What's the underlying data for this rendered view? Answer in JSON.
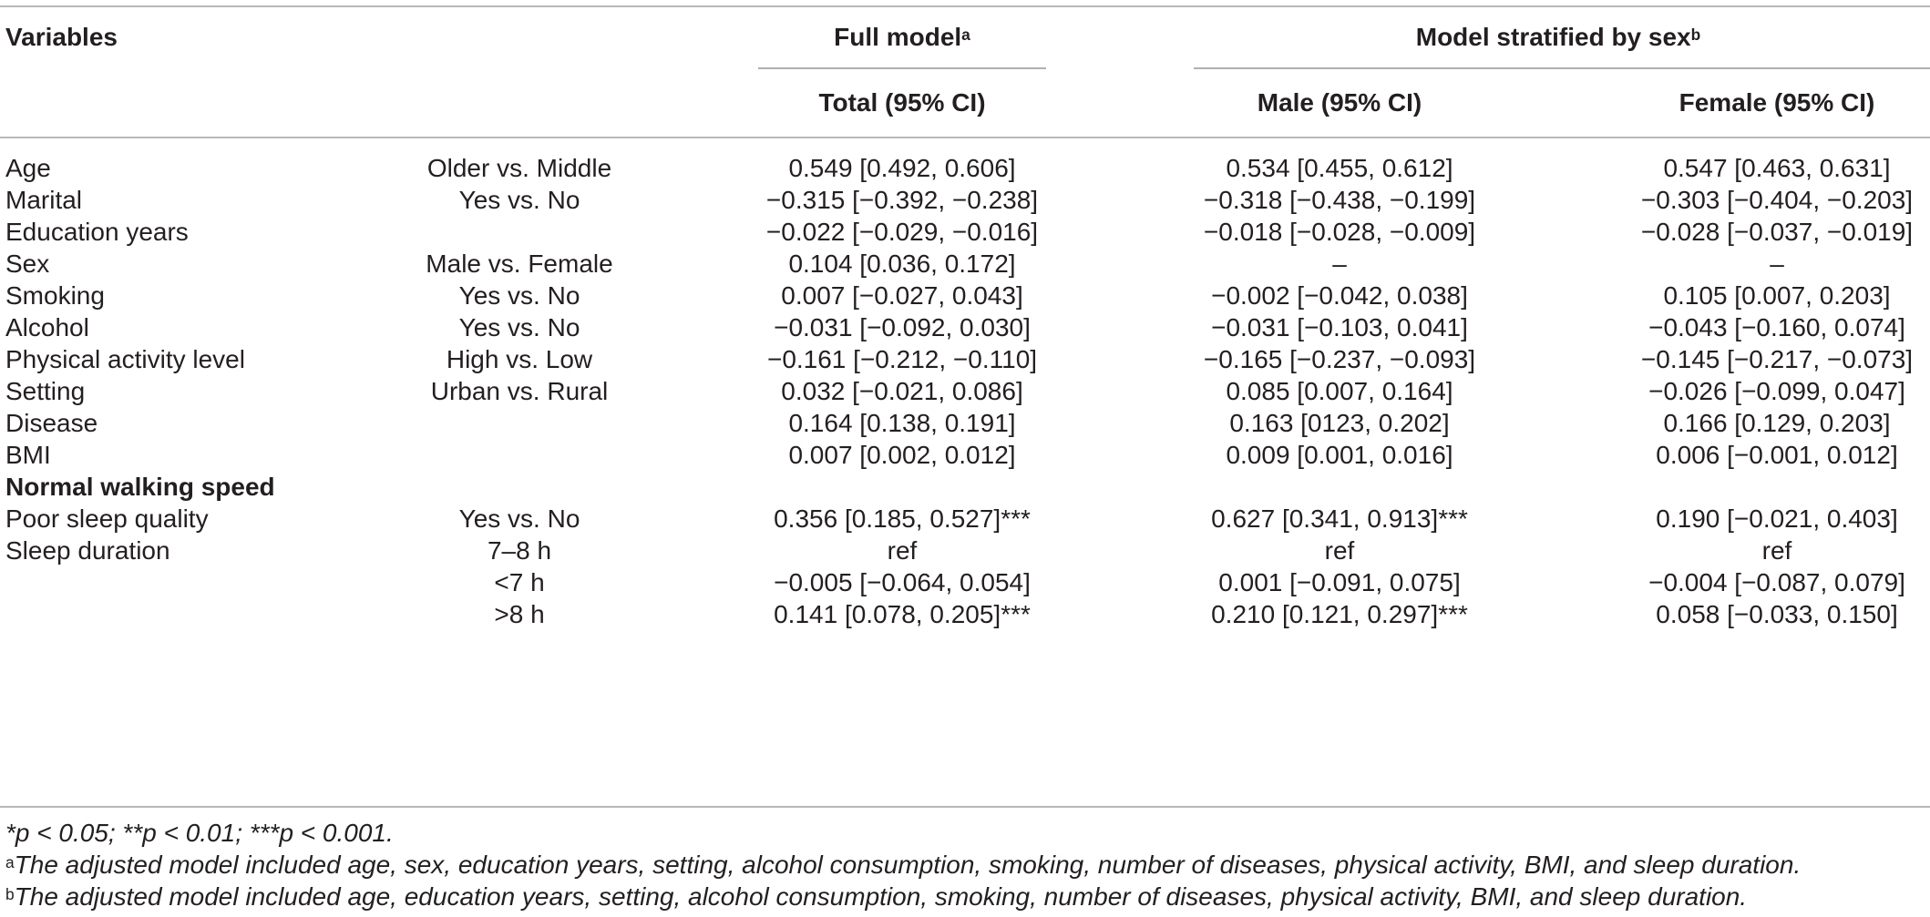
{
  "header": {
    "variables": "Variables",
    "full_model": "Full model",
    "full_model_sup": "a",
    "stratified": "Model stratified by sex",
    "stratified_sup": "b",
    "total": "Total (95% CI)",
    "male": "Male (95% CI)",
    "female": "Female (95% CI)"
  },
  "rows": [
    {
      "variable": "Age",
      "comparison": "Older vs. Middle",
      "total": "0.549 [0.492, 0.606]",
      "male": "0.534 [0.455, 0.612]",
      "female": "0.547 [0.463, 0.631]"
    },
    {
      "variable": "Marital",
      "comparison": "Yes vs. No",
      "total": "−0.315 [−0.392, −0.238]",
      "male": "−0.318 [−0.438, −0.199]",
      "female": "−0.303 [−0.404, −0.203]"
    },
    {
      "variable": "Education years",
      "comparison": "",
      "total": "−0.022 [−0.029, −0.016]",
      "male": "−0.018 [−0.028, −0.009]",
      "female": "−0.028 [−0.037, −0.019]"
    },
    {
      "variable": "Sex",
      "comparison": "Male vs. Female",
      "total": "0.104 [0.036, 0.172]",
      "male": "–",
      "female": "–"
    },
    {
      "variable": "Smoking",
      "comparison": "Yes vs. No",
      "total": "0.007 [−0.027, 0.043]",
      "male": "−0.002 [−0.042, 0.038]",
      "female": "0.105 [0.007, 0.203]"
    },
    {
      "variable": "Alcohol",
      "comparison": "Yes vs. No",
      "total": "−0.031 [−0.092, 0.030]",
      "male": "−0.031 [−0.103, 0.041]",
      "female": "−0.043 [−0.160, 0.074]"
    },
    {
      "variable": "Physical activity level",
      "comparison": "High vs. Low",
      "total": "−0.161 [−0.212, −0.110]",
      "male": "−0.165 [−0.237, −0.093]",
      "female": "−0.145 [−0.217, −0.073]"
    },
    {
      "variable": "Setting",
      "comparison": "Urban vs. Rural",
      "total": "0.032 [−0.021, 0.086]",
      "male": "0.085 [0.007, 0.164]",
      "female": "−0.026 [−0.099, 0.047]"
    },
    {
      "variable": "Disease",
      "comparison": "",
      "total": "0.164 [0.138, 0.191]",
      "male": "0.163 [0123, 0.202]",
      "female": "0.166 [0.129, 0.203]"
    },
    {
      "variable": "BMI",
      "comparison": "",
      "total": "0.007 [0.002, 0.012]",
      "male": "0.009 [0.001, 0.016]",
      "female": "0.006 [−0.001, 0.012]"
    }
  ],
  "section_title": "Normal walking speed",
  "section_rows": [
    {
      "variable": "Poor sleep quality",
      "comparison": "Yes vs. No",
      "total": "0.356 [0.185, 0.527]***",
      "male": "0.627 [0.341, 0.913]***",
      "female": "0.190 [−0.021, 0.403]"
    },
    {
      "variable": "Sleep duration",
      "comparison": "7–8 h",
      "total": "ref",
      "male": "ref",
      "female": "ref"
    },
    {
      "variable": "",
      "comparison": "<7 h",
      "total": "−0.005 [−0.064, 0.054]",
      "male": "0.001 [−0.091, 0.075]",
      "female": "−0.004 [−0.087, 0.079]"
    },
    {
      "variable": "",
      "comparison": ">8 h",
      "total": "0.141 [0.078, 0.205]***",
      "male": "0.210 [0.121, 0.297]***",
      "female": "0.058 [−0.033, 0.150]"
    }
  ],
  "footnotes": {
    "significance": "*p < 0.05; **p < 0.01; ***p < 0.001.",
    "a_marker": "a",
    "a_text": "The adjusted model included age, sex, education years, setting, alcohol consumption, smoking, number of diseases, physical activity, BMI, and sleep duration.",
    "b_marker": "b",
    "b_text": "The adjusted model included age, education years, setting, alcohol consumption, smoking, number of diseases, physical activity, BMI, and sleep duration."
  }
}
